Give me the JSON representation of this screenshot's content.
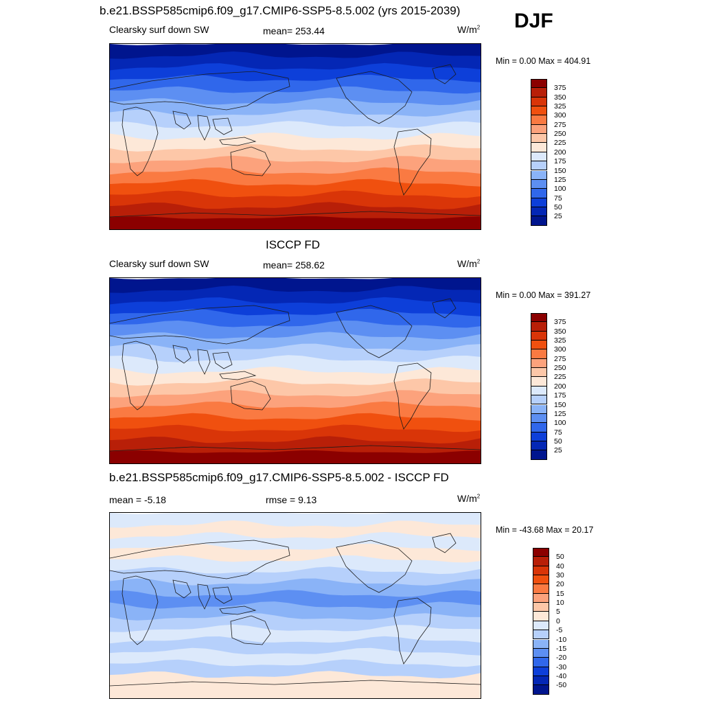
{
  "season": "DJF",
  "panels": [
    {
      "title": "b.e21.BSSP585cmip6.f09_g17.CMIP6-SSP5-8.5.002 (yrs 2015-2039)",
      "left_label": "Clearsky surf down SW",
      "center_label": "mean= 253.44",
      "unit": "W/m",
      "unit_sup": "2",
      "minmax": "Min =   0.00 Max = 404.91",
      "colorbar": {
        "labels": [
          "375",
          "350",
          "325",
          "300",
          "275",
          "250",
          "225",
          "200",
          "175",
          "150",
          "125",
          "100",
          "75",
          "50",
          "25"
        ],
        "colors": [
          "#8b0000",
          "#b81f08",
          "#d93508",
          "#f0500f",
          "#fa7a42",
          "#fca27c",
          "#fdc7a8",
          "#fde8d8",
          "#dce9fb",
          "#b6d0fb",
          "#8ab3f7",
          "#5d8ff2",
          "#3067eb",
          "#0d3fd9",
          "#0427b5",
          "#00158e"
        ]
      },
      "bands": [
        "#00158e",
        "#0427b5",
        "#0d3fd9",
        "#3067eb",
        "#5d8ff2",
        "#8ab3f7",
        "#b6d0fb",
        "#dce9fb",
        "#fde8d8",
        "#fdc7a8",
        "#fca27c",
        "#fa7a42",
        "#f0500f",
        "#d93508",
        "#b81f08",
        "#8b0000"
      ]
    },
    {
      "title": "ISCCP FD",
      "left_label": "Clearsky surf down SW",
      "center_label": "mean= 258.62",
      "unit": "W/m",
      "unit_sup": "2",
      "minmax": "Min =   0.00 Max = 391.27",
      "colorbar": {
        "labels": [
          "375",
          "350",
          "325",
          "300",
          "275",
          "250",
          "225",
          "200",
          "175",
          "150",
          "125",
          "100",
          "75",
          "50",
          "25"
        ],
        "colors": [
          "#8b0000",
          "#b81f08",
          "#d93508",
          "#f0500f",
          "#fa7a42",
          "#fca27c",
          "#fdc7a8",
          "#fde8d8",
          "#dce9fb",
          "#b6d0fb",
          "#8ab3f7",
          "#5d8ff2",
          "#3067eb",
          "#0d3fd9",
          "#0427b5",
          "#00158e"
        ]
      },
      "bands": [
        "#00158e",
        "#0427b5",
        "#0d3fd9",
        "#3067eb",
        "#5d8ff2",
        "#8ab3f7",
        "#b6d0fb",
        "#dce9fb",
        "#fde8d8",
        "#fdc7a8",
        "#fca27c",
        "#fa7a42",
        "#f0500f",
        "#d93508",
        "#b81f08",
        "#8b0000"
      ]
    },
    {
      "title": "b.e21.BSSP585cmip6.f09_g17.CMIP6-SSP5-8.5.002 - ISCCP FD",
      "left_label": "mean =  -5.18",
      "center_label": "rmse =   9.13",
      "unit": "W/m",
      "unit_sup": "2",
      "minmax": "Min = -43.68 Max =  20.17",
      "colorbar": {
        "labels": [
          "50",
          "40",
          "30",
          "20",
          "15",
          "10",
          "5",
          "0",
          "-5",
          "-10",
          "-15",
          "-20",
          "-30",
          "-40",
          "-50"
        ],
        "colors": [
          "#8b0000",
          "#b81f08",
          "#d93508",
          "#f0500f",
          "#fa7a42",
          "#fca27c",
          "#fdc7a8",
          "#fde8d8",
          "#dce9fb",
          "#b6d0fb",
          "#8ab3f7",
          "#5d8ff2",
          "#3067eb",
          "#0d3fd9",
          "#0427b5",
          "#00158e"
        ]
      },
      "bands": [
        "#dce9fb",
        "#fde8d8",
        "#dce9fb",
        "#fde8d8",
        "#dce9fb",
        "#b6d0fb",
        "#8ab3f7",
        "#5d8ff2",
        "#8ab3f7",
        "#b6d0fb",
        "#dce9fb",
        "#b6d0fb",
        "#dce9fb",
        "#b6d0fb",
        "#fde8d8",
        "#fde8d8"
      ]
    }
  ]
}
